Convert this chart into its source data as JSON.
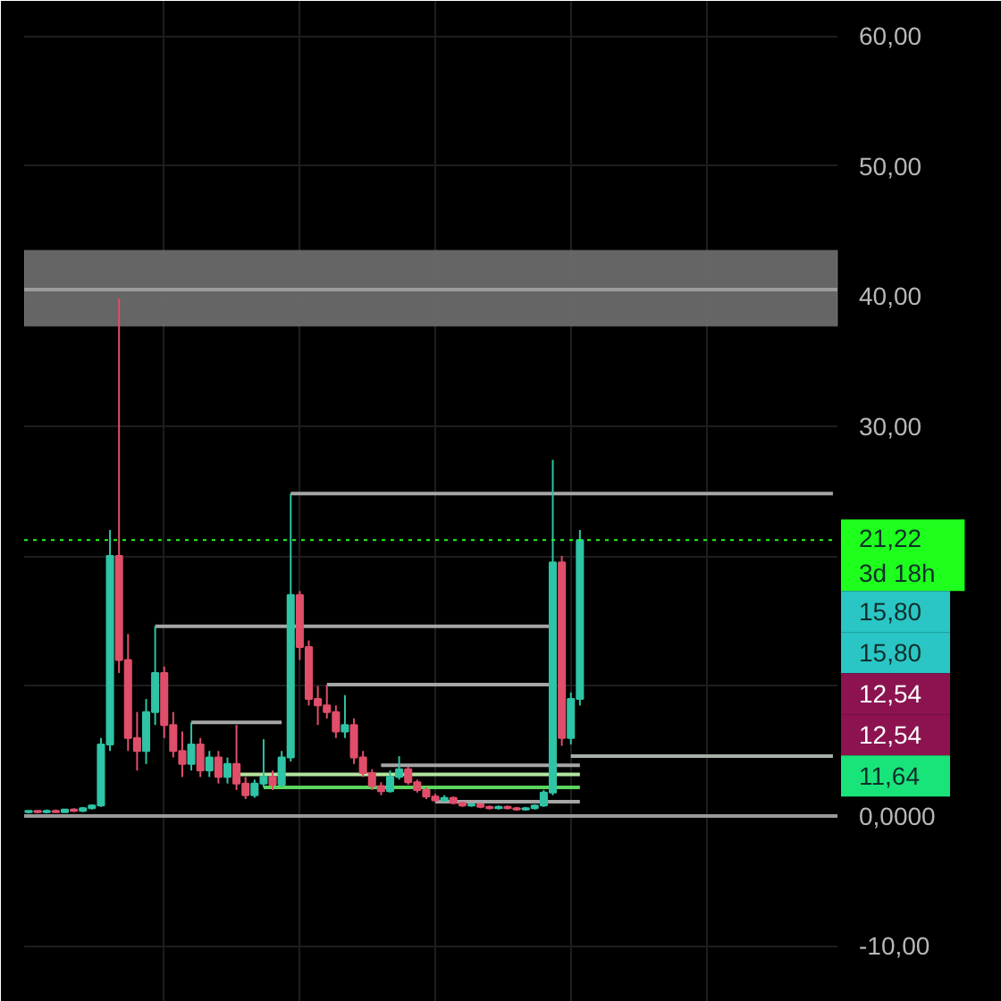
{
  "chart_data": {
    "type": "candlestick",
    "categories": [
      null,
      null,
      null,
      null,
      null,
      null,
      null,
      null,
      null,
      null,
      null,
      null,
      null,
      null,
      null,
      null,
      null,
      null,
      null,
      null,
      null,
      null,
      null,
      null,
      null,
      null,
      null,
      null,
      null,
      null,
      null,
      null,
      null,
      null,
      null,
      null,
      null,
      null,
      null,
      null,
      null,
      null,
      null,
      null,
      null,
      null,
      null,
      null,
      null,
      null,
      null,
      null,
      null,
      null,
      null,
      null,
      null,
      null,
      null,
      null,
      null,
      null,
      null,
      null,
      null,
      null,
      null,
      null,
      null,
      null,
      null,
      null,
      null,
      null,
      null,
      null,
      null,
      null,
      null,
      null,
      null,
      null,
      null,
      null,
      null,
      null,
      null,
      null,
      null,
      null
    ],
    "ohlc": [
      [
        0.3,
        0.4,
        0.2,
        0.4
      ],
      [
        0.4,
        0.4,
        0.2,
        0.3
      ],
      [
        0.3,
        0.5,
        0.2,
        0.4
      ],
      [
        0.4,
        0.5,
        0.3,
        0.3
      ],
      [
        0.3,
        0.5,
        0.3,
        0.5
      ],
      [
        0.5,
        0.6,
        0.3,
        0.4
      ],
      [
        0.4,
        0.7,
        0.3,
        0.6
      ],
      [
        0.6,
        0.9,
        0.5,
        0.8
      ],
      [
        0.8,
        6,
        0.7,
        5.5
      ],
      [
        5.5,
        22,
        5,
        20
      ],
      [
        20,
        39.8,
        11,
        12
      ],
      [
        12,
        14,
        5,
        6
      ],
      [
        6,
        8,
        3.5,
        5
      ],
      [
        5,
        9,
        4,
        8
      ],
      [
        8,
        14.6,
        7,
        11
      ],
      [
        11,
        11.5,
        6,
        7
      ],
      [
        7,
        8,
        4.5,
        5
      ],
      [
        5,
        6.5,
        3,
        4
      ],
      [
        4,
        7.2,
        3.5,
        5.5
      ],
      [
        5.5,
        6,
        3,
        3.5
      ],
      [
        3.5,
        5,
        3,
        4.5
      ],
      [
        4.5,
        5,
        2.5,
        3
      ],
      [
        3,
        4.5,
        2.5,
        4
      ],
      [
        4,
        7,
        2,
        2.5
      ],
      [
        2.5,
        3,
        1.3,
        1.6
      ],
      [
        1.6,
        2.8,
        1.4,
        2.5
      ],
      [
        2.5,
        5.9,
        2.2,
        3
      ],
      [
        3,
        3.5,
        2,
        2.4
      ],
      [
        2.4,
        5,
        2.2,
        4.5
      ],
      [
        4.5,
        24.8,
        4.2,
        17
      ],
      [
        17,
        17.3,
        12,
        13
      ],
      [
        13,
        13.5,
        8.5,
        9
      ],
      [
        9,
        10,
        7,
        8.5
      ],
      [
        8.5,
        10.1,
        7.5,
        8
      ],
      [
        8,
        8.5,
        6,
        6.5
      ],
      [
        6.5,
        9.3,
        6,
        7
      ],
      [
        7,
        7.5,
        4,
        4.5
      ],
      [
        4.5,
        5,
        3,
        3.3
      ],
      [
        3.3,
        3.6,
        2,
        2.3
      ],
      [
        2.3,
        2.6,
        1.6,
        1.9
      ],
      [
        1.9,
        3.5,
        1.8,
        3
      ],
      [
        3,
        4.6,
        2.8,
        3.6
      ],
      [
        3.6,
        3.8,
        2.4,
        2.6
      ],
      [
        2.6,
        2.8,
        1.8,
        2
      ],
      [
        2,
        2.2,
        1.3,
        1.5
      ],
      [
        1.5,
        1.7,
        1.1,
        1.2
      ],
      [
        1.2,
        1.6,
        1.1,
        1.4
      ],
      [
        1.4,
        1.5,
        0.9,
        1
      ],
      [
        1,
        1.1,
        0.7,
        0.8
      ],
      [
        0.8,
        1,
        0.7,
        0.9
      ],
      [
        0.9,
        1,
        0.6,
        0.7
      ],
      [
        0.7,
        0.8,
        0.5,
        0.6
      ],
      [
        0.6,
        0.8,
        0.5,
        0.7
      ],
      [
        0.7,
        0.8,
        0.5,
        0.6
      ],
      [
        0.6,
        0.7,
        0.4,
        0.5
      ],
      [
        0.5,
        0.7,
        0.4,
        0.6
      ],
      [
        0.6,
        0.9,
        0.5,
        0.8
      ],
      [
        0.8,
        2,
        0.7,
        1.8
      ],
      [
        1.8,
        27.4,
        1.6,
        19.5
      ],
      [
        19.5,
        20,
        5.4,
        6
      ],
      [
        6,
        9.5,
        5.5,
        9
      ],
      [
        9,
        22,
        8.5,
        21.22
      ],
      null,
      null,
      null,
      null,
      null,
      null,
      null,
      null,
      null,
      null,
      null,
      null,
      null,
      null,
      null,
      null,
      null,
      null,
      null,
      null,
      null,
      null,
      null,
      null,
      null,
      null,
      null,
      null
    ],
    "colors": [
      "#2ec4a5",
      "#e04e6a",
      "#2ec4a5",
      "#e04e6a",
      "#2ec4a5",
      "#e04e6a",
      "#2ec4a5",
      "#2ec4a5",
      "#2ec4a5",
      "#2ec4a5",
      "#e04e6a",
      "#e04e6a",
      "#e04e6a",
      "#2ec4a5",
      "#2ec4a5",
      "#e04e6a",
      "#e04e6a",
      "#e04e6a",
      "#2ec4a5",
      "#e04e6a",
      "#2ec4a5",
      "#e04e6a",
      "#2ec4a5",
      "#e04e6a",
      "#e04e6a",
      "#2ec4a5",
      "#2ec4a5",
      "#e04e6a",
      "#2ec4a5",
      "#2ec4a5",
      "#e04e6a",
      "#e04e6a",
      "#e04e6a",
      "#e04e6a",
      "#e04e6a",
      "#2ec4a5",
      "#e04e6a",
      "#e04e6a",
      "#e04e6a",
      "#e04e6a",
      "#2ec4a5",
      "#2ec4a5",
      "#e04e6a",
      "#e04e6a",
      "#e04e6a",
      "#e04e6a",
      "#2ec4a5",
      "#e04e6a",
      "#e04e6a",
      "#2ec4a5",
      "#e04e6a",
      "#e04e6a",
      "#2ec4a5",
      "#e04e6a",
      "#e04e6a",
      "#2ec4a5",
      "#2ec4a5",
      "#2ec4a5",
      "#2ec4a5",
      "#e04e6a",
      "#2ec4a5",
      "#2ec4a5",
      null,
      null,
      null,
      null,
      null,
      null,
      null,
      null,
      null,
      null,
      null,
      null,
      null,
      null,
      null,
      null,
      null,
      null,
      null,
      null,
      null,
      null,
      null,
      null,
      null,
      null,
      null,
      null
    ],
    "series": [
      {
        "type": "line",
        "color": "#a6a6a6",
        "values": [
          null,
          null,
          null,
          null,
          null,
          null,
          null,
          null,
          null,
          null,
          null,
          null,
          null,
          null,
          null,
          null,
          null,
          null,
          null,
          null,
          null,
          null,
          null,
          null,
          null,
          null,
          null,
          null,
          null,
          24.8,
          24.8,
          24.8,
          24.8,
          24.8,
          24.8,
          24.8,
          24.8,
          24.8,
          24.8,
          24.8,
          24.8,
          24.8,
          24.8,
          24.8,
          24.8,
          24.8,
          24.8,
          24.8,
          24.8,
          24.8,
          24.8,
          24.8,
          24.8,
          24.8,
          24.8,
          24.8,
          24.8,
          24.8,
          24.8,
          24.8,
          24.8,
          24.8,
          24.8,
          24.8,
          24.8,
          24.8,
          24.8,
          24.8,
          24.8,
          24.8,
          24.8,
          24.8,
          24.8,
          24.8,
          24.8,
          24.8,
          24.8,
          24.8,
          24.8,
          24.8,
          24.8,
          24.8,
          24.8,
          24.8,
          24.8,
          24.8,
          24.8,
          24.8,
          24.8,
          24.8
        ]
      },
      {
        "type": "line",
        "color": "#a6a6a6",
        "values": [
          null,
          null,
          null,
          null,
          null,
          null,
          null,
          null,
          null,
          null,
          null,
          null,
          null,
          null,
          14.6,
          14.6,
          14.6,
          14.6,
          14.6,
          14.6,
          14.6,
          14.6,
          14.6,
          14.6,
          14.6,
          14.6,
          14.6,
          14.6,
          14.6,
          14.6,
          14.6,
          14.6,
          14.6,
          14.6,
          14.6,
          14.6,
          14.6,
          14.6,
          14.6,
          14.6,
          14.6,
          14.6,
          14.6,
          14.6,
          14.6,
          14.6,
          14.6,
          14.6,
          14.6,
          14.6,
          14.6,
          14.6,
          14.6,
          14.6,
          14.6,
          14.6,
          14.6,
          14.6,
          14.6,
          null,
          null,
          null,
          null,
          null,
          null,
          null,
          null,
          null,
          null,
          null,
          null,
          null,
          null,
          null,
          null,
          null,
          null,
          null,
          null,
          null,
          null,
          null,
          null,
          null,
          null,
          null,
          null,
          null,
          null,
          null
        ]
      },
      {
        "type": "line",
        "color": "#a6a6a6",
        "values": [
          null,
          null,
          null,
          null,
          null,
          null,
          null,
          null,
          null,
          null,
          null,
          null,
          null,
          null,
          null,
          null,
          null,
          null,
          null,
          null,
          null,
          null,
          null,
          null,
          null,
          null,
          null,
          null,
          null,
          null,
          null,
          null,
          null,
          10.1,
          10.1,
          10.1,
          10.1,
          10.1,
          10.1,
          10.1,
          10.1,
          10.1,
          10.1,
          10.1,
          10.1,
          10.1,
          10.1,
          10.1,
          10.1,
          10.1,
          10.1,
          10.1,
          10.1,
          10.1,
          10.1,
          10.1,
          10.1,
          10.1,
          10.1,
          null,
          null,
          null,
          null,
          null,
          null,
          null,
          null,
          null,
          null,
          null,
          null,
          null,
          null,
          null,
          null,
          null,
          null,
          null,
          null,
          null,
          null,
          null,
          null,
          null,
          null,
          null,
          null,
          null,
          null,
          null
        ]
      },
      {
        "type": "line",
        "color": "#a6a6a6",
        "values": [
          null,
          null,
          null,
          null,
          null,
          null,
          null,
          null,
          null,
          null,
          null,
          null,
          null,
          null,
          null,
          null,
          null,
          null,
          7.2,
          7.2,
          7.2,
          7.2,
          7.2,
          7.2,
          7.2,
          7.2,
          7.2,
          7.2,
          7.2,
          null,
          null,
          null,
          null,
          null,
          null,
          null,
          null,
          null,
          null,
          null,
          null,
          null,
          null,
          null,
          null,
          null,
          null,
          null,
          null,
          null,
          null,
          null,
          null,
          null,
          null,
          null,
          null,
          null,
          null,
          null,
          null,
          null,
          null,
          null,
          null,
          null,
          null,
          null,
          null,
          null,
          null,
          null,
          null,
          null,
          null,
          null,
          null,
          null,
          null,
          null,
          null,
          null,
          null,
          null,
          null,
          null,
          null,
          null,
          null,
          null
        ]
      },
      {
        "type": "line",
        "color": "#a6b0a8",
        "values": [
          null,
          null,
          null,
          null,
          null,
          null,
          null,
          null,
          null,
          null,
          null,
          null,
          null,
          null,
          null,
          null,
          null,
          null,
          null,
          null,
          null,
          null,
          null,
          null,
          null,
          null,
          null,
          null,
          null,
          null,
          null,
          null,
          null,
          null,
          null,
          null,
          null,
          null,
          null,
          null,
          null,
          null,
          null,
          null,
          null,
          null,
          null,
          null,
          null,
          null,
          null,
          null,
          null,
          null,
          null,
          null,
          null,
          null,
          null,
          null,
          4.6,
          4.6,
          4.6,
          4.6,
          4.6,
          4.6,
          4.6,
          4.6,
          4.6,
          4.6,
          4.6,
          4.6,
          4.6,
          4.6,
          4.6,
          4.6,
          4.6,
          4.6,
          4.6,
          4.6,
          4.6,
          4.6,
          4.6,
          4.6,
          4.6,
          4.6,
          4.6,
          4.6,
          4.6,
          4.6
        ]
      },
      {
        "type": "line",
        "color": "#a6a6a6",
        "values": [
          null,
          null,
          null,
          null,
          null,
          null,
          null,
          null,
          null,
          null,
          null,
          null,
          null,
          null,
          null,
          null,
          null,
          null,
          null,
          null,
          null,
          null,
          null,
          null,
          null,
          null,
          null,
          null,
          null,
          null,
          null,
          null,
          null,
          null,
          null,
          null,
          null,
          null,
          null,
          3.9,
          3.9,
          3.9,
          3.9,
          3.9,
          3.9,
          3.9,
          3.9,
          3.9,
          3.9,
          3.9,
          3.9,
          3.9,
          3.9,
          3.9,
          3.9,
          3.9,
          3.9,
          3.9,
          3.9,
          3.9,
          3.9,
          3.9,
          null,
          null,
          null,
          null,
          null,
          null,
          null,
          null,
          null,
          null,
          null,
          null,
          null,
          null,
          null,
          null,
          null,
          null,
          null,
          null,
          null,
          null,
          null,
          null,
          null,
          null,
          null,
          null
        ]
      },
      {
        "type": "line",
        "color": "#b5e6a0",
        "values": [
          null,
          null,
          null,
          null,
          null,
          null,
          null,
          null,
          null,
          null,
          null,
          null,
          null,
          null,
          null,
          null,
          null,
          null,
          null,
          null,
          null,
          null,
          null,
          3.2,
          3.2,
          3.2,
          3.2,
          3.2,
          3.2,
          3.2,
          3.2,
          3.2,
          3.2,
          3.2,
          3.2,
          3.2,
          3.2,
          3.2,
          3.2,
          3.2,
          3.2,
          3.2,
          3.2,
          3.2,
          3.2,
          3.2,
          3.2,
          3.2,
          3.2,
          3.2,
          3.2,
          3.2,
          3.2,
          3.2,
          3.2,
          3.2,
          3.2,
          3.2,
          3.2,
          3.2,
          3.2,
          3.2,
          null,
          null,
          null,
          null,
          null,
          null,
          null,
          null,
          null,
          null,
          null,
          null,
          null,
          null,
          null,
          null,
          null,
          null,
          null,
          null,
          null,
          null,
          null,
          null,
          null,
          null,
          null,
          null
        ]
      },
      {
        "type": "line",
        "color": "#5cd65c",
        "values": [
          null,
          null,
          null,
          null,
          null,
          null,
          null,
          null,
          null,
          null,
          null,
          null,
          null,
          null,
          null,
          null,
          null,
          null,
          null,
          null,
          null,
          null,
          null,
          null,
          null,
          null,
          2.2,
          2.2,
          2.2,
          2.2,
          2.2,
          2.2,
          2.2,
          2.2,
          2.2,
          2.2,
          2.2,
          2.2,
          2.2,
          2.2,
          2.2,
          2.2,
          2.2,
          2.2,
          2.2,
          2.2,
          2.2,
          2.2,
          2.2,
          2.2,
          2.2,
          2.2,
          2.2,
          2.2,
          2.2,
          2.2,
          2.2,
          2.2,
          2.2,
          2.2,
          2.2,
          2.2,
          null,
          null,
          null,
          null,
          null,
          null,
          null,
          null,
          null,
          null,
          null,
          null,
          null,
          null,
          null,
          null,
          null,
          null,
          null,
          null,
          null,
          null,
          null,
          null,
          null,
          null,
          null,
          null
        ]
      },
      {
        "type": "line",
        "color": "#a6a6a6",
        "values": [
          null,
          null,
          null,
          null,
          null,
          null,
          null,
          null,
          null,
          null,
          null,
          null,
          null,
          null,
          null,
          null,
          null,
          null,
          null,
          null,
          null,
          null,
          null,
          null,
          null,
          null,
          null,
          null,
          null,
          null,
          null,
          null,
          null,
          null,
          null,
          null,
          null,
          null,
          null,
          null,
          null,
          null,
          null,
          null,
          null,
          1.1,
          1.1,
          1.1,
          1.1,
          1.1,
          1.1,
          1.1,
          1.1,
          1.1,
          1.1,
          1.1,
          1.1,
          1.1,
          1.1,
          1.1,
          1.1,
          1.1,
          null,
          null,
          null,
          null,
          null,
          null,
          null,
          null,
          null,
          null,
          null,
          null,
          null,
          null,
          null,
          null,
          null,
          null,
          null,
          null,
          null,
          null,
          null,
          null,
          null,
          null,
          null,
          null
        ]
      }
    ],
    "ylim": [
      -14.3,
      62.7
    ],
    "yticks": [
      {
        "value": 60,
        "label": "60,00"
      },
      {
        "value": 50,
        "label": "50,00"
      },
      {
        "value": 40,
        "label": "40,00"
      },
      {
        "value": 30,
        "label": "30,00"
      },
      {
        "value": 20,
        "label": null
      },
      {
        "value": 10,
        "label": null
      },
      {
        "value": 0,
        "label": "0,0000"
      },
      {
        "value": -10,
        "label": "-10,00"
      }
    ],
    "bands": [
      {
        "axis": "y",
        "from": 37.7,
        "to": 43.5,
        "color": "#6a6a6a"
      }
    ],
    "ref_lines": [
      {
        "axis": "y",
        "value": 40.5,
        "color": "#9c9c9c",
        "line_style": "solid"
      },
      {
        "axis": "y",
        "value": 0,
        "color": "#9a9a9a",
        "line_style": "solid"
      },
      {
        "axis": "y",
        "value": 21.22,
        "label": "21,22\n3d 18h",
        "color": "#1eff1e",
        "line_style": "dotted"
      }
    ],
    "annotations": [
      "15,80",
      "15,80",
      "12,54",
      "12,54",
      "11,64"
    ],
    "grid": true,
    "tick_labels": "y"
  }
}
